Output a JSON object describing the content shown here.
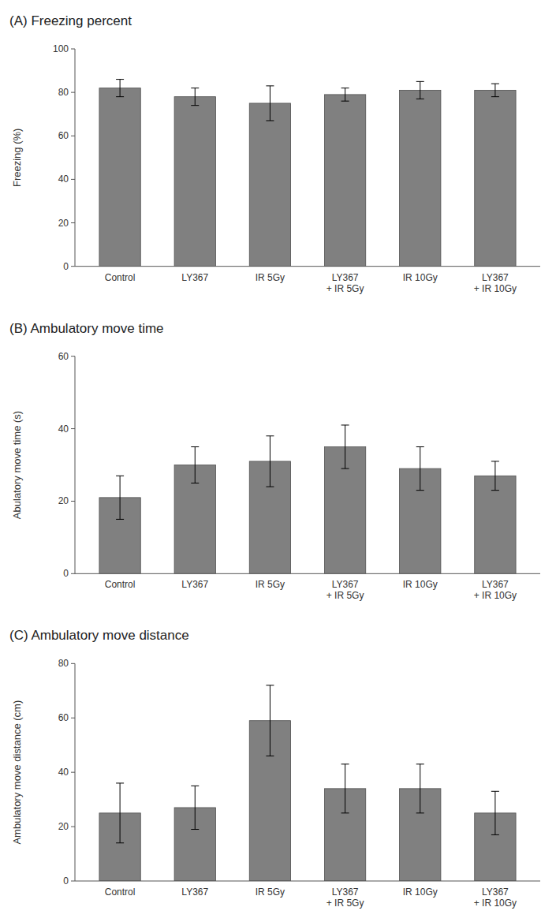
{
  "chart_data": [
    {
      "type": "bar",
      "title": "(A) Freezing percent",
      "ylabel": "Freezing (%)",
      "categories": [
        "Control",
        "LY367",
        "IR 5Gy",
        "LY367\n+ IR 5Gy",
        "IR 10Gy",
        "LY367\n+ IR 10Gy"
      ],
      "values": [
        82,
        78,
        75,
        79,
        81,
        81
      ],
      "errors": [
        4,
        4,
        8,
        3,
        4,
        3
      ],
      "color": "#808080",
      "ylim": [
        0,
        100
      ],
      "yticks": [
        0,
        20,
        40,
        60,
        80,
        100
      ],
      "grid": false
    },
    {
      "type": "bar",
      "title": "(B) Ambulatory move  time",
      "ylabel": "Abulatory move time (s)",
      "categories": [
        "Control",
        "LY367",
        "IR 5Gy",
        "LY367\n+ IR 5Gy",
        "IR 10Gy",
        "LY367\n+ IR 10Gy"
      ],
      "values": [
        21,
        30,
        31,
        35,
        29,
        27
      ],
      "errors": [
        6,
        5,
        7,
        6,
        6,
        4
      ],
      "color": "#808080",
      "ylim": [
        0,
        60
      ],
      "yticks": [
        0,
        20,
        40,
        60
      ],
      "grid": false
    },
    {
      "type": "bar",
      "title": "(C) Ambulatory move distance",
      "ylabel": "Ambulatory move distance (cm)",
      "categories": [
        "Control",
        "LY367",
        "IR 5Gy",
        "LY367\n+ IR 5Gy",
        "IR 10Gy",
        "LY367\n+ IR 10Gy"
      ],
      "values": [
        25,
        27,
        59,
        34,
        34,
        25
      ],
      "errors": [
        11,
        8,
        13,
        9,
        9,
        8
      ],
      "color": "#808080",
      "ylim": [
        0,
        80
      ],
      "yticks": [
        0,
        20,
        40,
        60,
        80
      ],
      "grid": false
    }
  ]
}
